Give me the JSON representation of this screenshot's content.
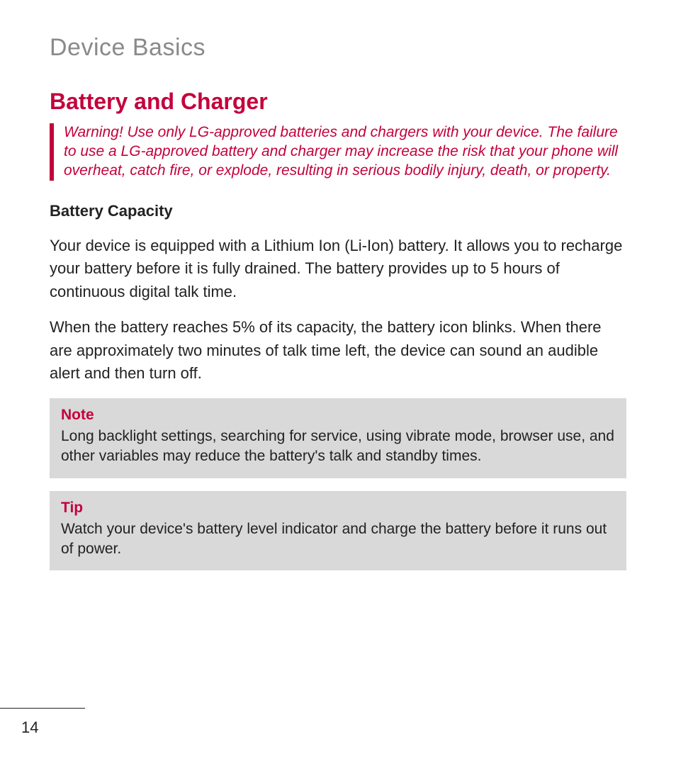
{
  "colors": {
    "accent": "#c4003c",
    "chapter_grey": "#8a8a8a",
    "body_text": "#222222",
    "callout_bg": "#d9d9d9",
    "page_bg": "#ffffff"
  },
  "typography": {
    "chapter_fontsize": 34,
    "section_fontsize": 32,
    "body_fontsize": 22,
    "warning_fontsize": 21,
    "callout_fontsize": 21
  },
  "chapter": {
    "title": "Device Basics"
  },
  "section": {
    "title": "Battery and Charger"
  },
  "warning": {
    "text": "Warning! Use only LG-approved batteries and chargers with your device. The failure to use a LG-approved battery and charger may increase the risk that your phone will overheat, catch fire, or explode, resulting in serious bodily injury, death, or property."
  },
  "subheading": "Battery Capacity",
  "paragraphs": [
    "Your device is equipped with a Lithium Ion (Li-Ion) battery. It allows you to recharge your battery before it is fully drained. The battery provides up to 5 hours of continuous digital talk time.",
    "When the battery reaches 5% of its capacity, the battery icon blinks. When there are approximately two minutes of talk time left, the device can sound an audible alert and then turn off."
  ],
  "note": {
    "title": "Note",
    "body": "Long backlight settings, searching for service, using vibrate mode, browser use, and other variables may reduce the battery's talk and standby times."
  },
  "tip": {
    "title": "Tip",
    "body": "Watch your device's battery level indicator and charge the battery before it runs out of power."
  },
  "page_number": "14"
}
